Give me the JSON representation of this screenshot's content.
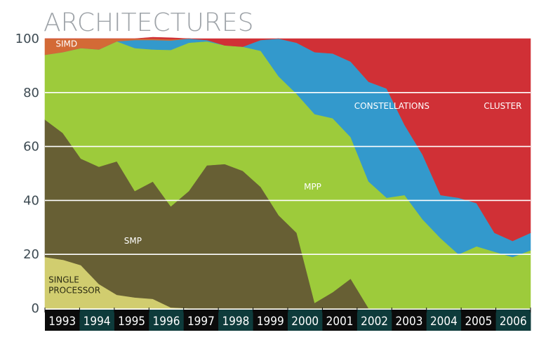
{
  "chart_data": {
    "type": "area",
    "stacked": true,
    "title": "ARCHITECTURES",
    "ylim": [
      0,
      100
    ],
    "yticks": [
      0,
      20,
      40,
      60,
      80,
      100
    ],
    "x": [
      1993.0,
      1993.5,
      1994.0,
      1994.5,
      1995.0,
      1995.5,
      1996.0,
      1996.5,
      1997.0,
      1997.5,
      1998.0,
      1998.5,
      1999.0,
      1999.5,
      2000.0,
      2000.5,
      2001.0,
      2001.5,
      2002.0,
      2002.5,
      2003.0,
      2003.5,
      2004.0,
      2004.5,
      2005.0,
      2005.5,
      2006.0,
      2006.5
    ],
    "year_labels": [
      "1993",
      "1994",
      "1995",
      "1996",
      "1997",
      "1998",
      "1999",
      "2000",
      "2001",
      "2002",
      "2003",
      "2004",
      "2005",
      "2006"
    ],
    "series": [
      {
        "name": "SINGLE PROCESSOR",
        "color": "#d1cd6f",
        "values": [
          19,
          18,
          16,
          9,
          5,
          4,
          3.5,
          0.3,
          0,
          0,
          0,
          0,
          0,
          0,
          0,
          0,
          0,
          0,
          0,
          0,
          0,
          0,
          0,
          0,
          0,
          0,
          0,
          0
        ]
      },
      {
        "name": "SMP",
        "color": "#675f34",
        "values": [
          51,
          47,
          39.5,
          43.5,
          49.5,
          39.5,
          43.5,
          37.5,
          43.5,
          53,
          53.5,
          51,
          45,
          34.5,
          28,
          2,
          6,
          11,
          0,
          0,
          0,
          0,
          0,
          0,
          0,
          0,
          0,
          0
        ]
      },
      {
        "name": "MPP",
        "color": "#9dcb3b",
        "values": [
          24,
          30,
          41,
          43.5,
          44.5,
          53,
          49,
          58,
          55,
          46,
          44,
          46,
          50.5,
          51.5,
          51.5,
          70,
          64.5,
          52.5,
          47,
          41,
          42,
          33,
          26,
          20,
          23,
          21,
          19,
          21.5
        ]
      },
      {
        "name": "CONSTELLATIONS",
        "color": "#3399cc",
        "values": [
          0,
          0,
          0,
          0,
          0,
          3,
          3.5,
          3.5,
          1.5,
          0.5,
          0,
          0,
          4,
          14,
          19,
          23,
          24,
          28,
          37,
          40.5,
          26,
          24,
          16,
          21,
          16,
          7,
          6,
          6.5
        ]
      },
      {
        "name": "SIMD",
        "color": "#d36a36",
        "values": [
          6,
          5,
          3.5,
          4,
          1,
          0.5,
          0.5,
          0.5,
          0,
          0,
          0,
          0,
          0,
          0,
          0,
          0,
          0,
          0,
          0,
          0,
          0,
          0,
          0,
          0,
          0,
          0,
          0,
          0
        ]
      },
      {
        "name": "CLUSTER",
        "color": "#d03036",
        "values": [
          0,
          0,
          0,
          0,
          0,
          0,
          0.5,
          0.5,
          0,
          0.5,
          2.5,
          3,
          0.5,
          0,
          1.5,
          5,
          5.5,
          8.5,
          16,
          18.5,
          32,
          43,
          58,
          59,
          61,
          72,
          75,
          72
        ]
      }
    ],
    "area_labels": [
      {
        "series": "SIMD",
        "text": "SIMD",
        "at": [
          1993.3,
          97
        ]
      },
      {
        "series": "CONSTELLATIONS",
        "text": "CONSTELLATIONS",
        "at": [
          2001.6,
          74
        ]
      },
      {
        "series": "CLUSTER",
        "text": "CLUSTER",
        "at": [
          2005.2,
          74
        ]
      },
      {
        "series": "MPP",
        "text": "MPP",
        "at": [
          2000.2,
          44
        ]
      },
      {
        "series": "SMP",
        "text": "SMP",
        "at": [
          1995.2,
          24
        ]
      },
      {
        "series": "SINGLE PROCESSOR",
        "lines": [
          "SINGLE",
          "PROCESSOR"
        ],
        "at": [
          1993.1,
          9.5
        ]
      }
    ],
    "colors": {
      "gridline": "#ffffff",
      "axis_bar_dark": "#0b0b0b",
      "axis_bar_teal": "#0e3b3b",
      "tick_text": "#3d4a52",
      "title": "#9ea3a8"
    }
  }
}
